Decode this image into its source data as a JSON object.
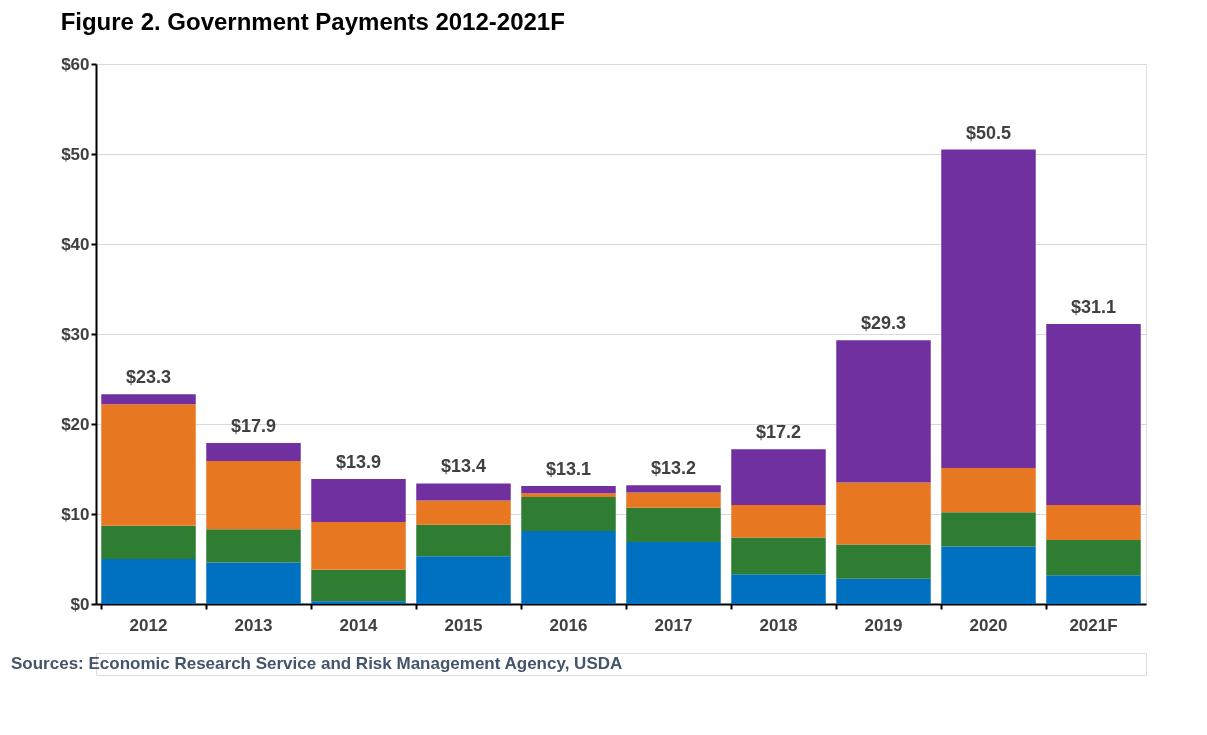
{
  "chart_data": {
    "type": "bar",
    "title": "Figure 2. Government Payments 2012-2021F",
    "stacked": true,
    "categories": [
      "2012",
      "2013",
      "2014",
      "2015",
      "2016",
      "2017",
      "2018",
      "2019",
      "2020",
      "2021F"
    ],
    "series": [
      {
        "color": "#0070c0",
        "values": [
          5.0,
          4.6,
          0.3,
          5.3,
          8.1,
          6.9,
          3.3,
          2.8,
          6.4,
          3.2
        ]
      },
      {
        "color": "#2e7d32",
        "values": [
          3.7,
          3.7,
          3.5,
          3.5,
          3.8,
          3.8,
          4.1,
          3.8,
          3.8,
          3.9
        ]
      },
      {
        "color": "#e87722",
        "values": [
          13.5,
          7.6,
          5.3,
          2.7,
          0.4,
          1.7,
          3.6,
          6.9,
          4.9,
          3.9
        ]
      },
      {
        "color": "#7030a0",
        "values": [
          1.1,
          2.0,
          4.8,
          1.9,
          0.8,
          0.8,
          6.2,
          15.8,
          35.4,
          20.1
        ]
      }
    ],
    "totals": [
      "$23.3",
      "$17.9",
      "$13.9",
      "$13.4",
      "$13.1",
      "$13.2",
      "$17.2",
      "$29.3",
      "$50.5",
      "$31.1"
    ],
    "ylim": [
      0,
      60
    ],
    "yticks": [
      {
        "value": 0,
        "label": "$0"
      },
      {
        "value": 10,
        "label": "$10"
      },
      {
        "value": 20,
        "label": "$20"
      },
      {
        "value": 30,
        "label": "$30"
      },
      {
        "value": 40,
        "label": "$40"
      },
      {
        "value": 50,
        "label": "$50"
      },
      {
        "value": 60,
        "label": "$60"
      }
    ],
    "grid": "y",
    "legend": false,
    "annotations": [
      "Sources: Economic Research Service and Risk Management Agency, USDA"
    ]
  }
}
